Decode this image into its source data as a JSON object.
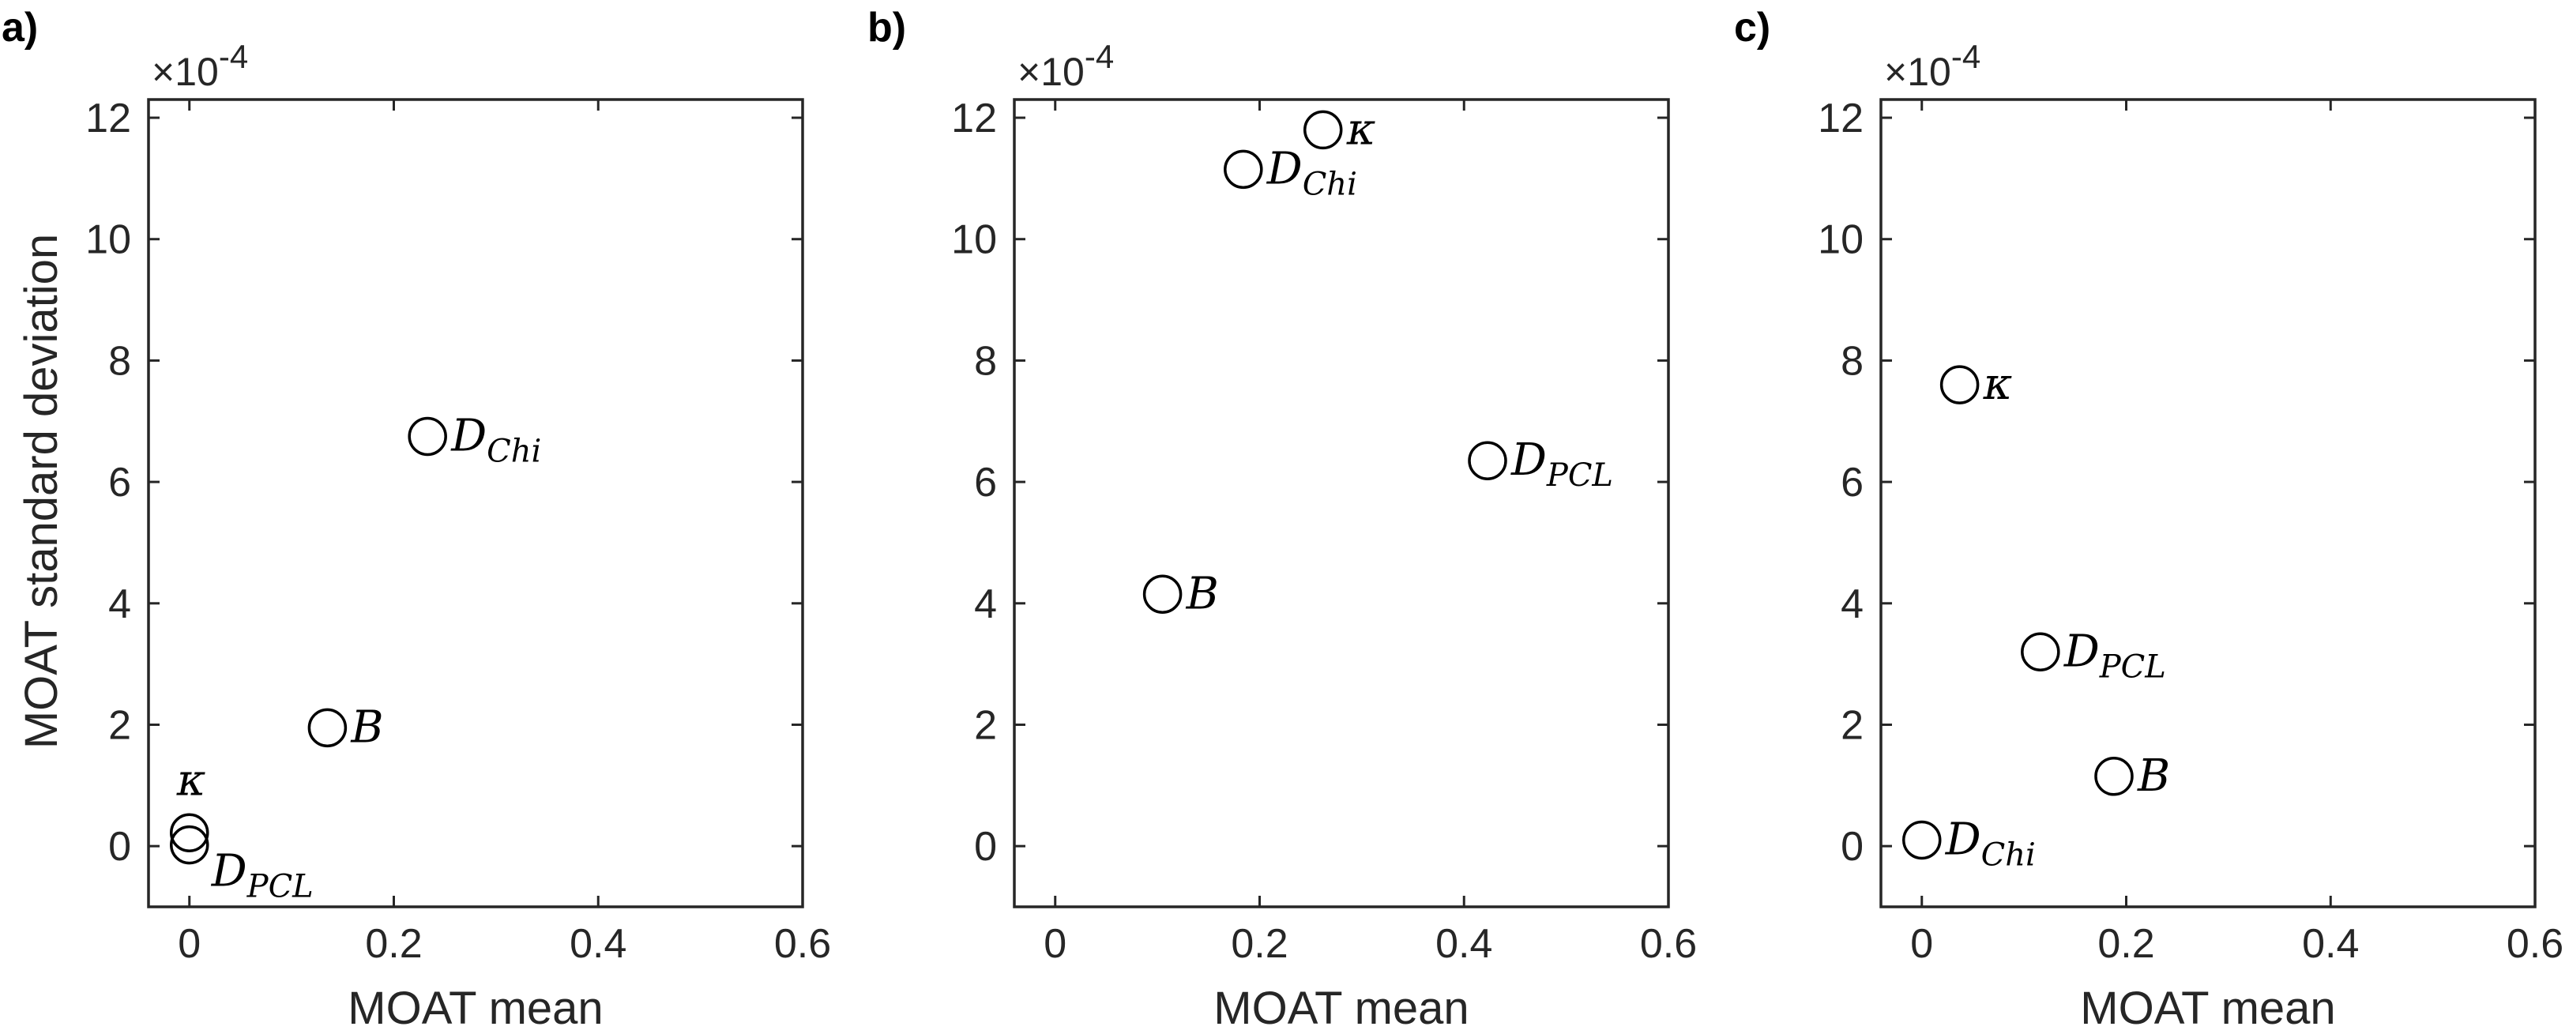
{
  "figure": {
    "ylabel": "MOAT standard deviation",
    "xlabel": "MOAT mean"
  },
  "chart_data": [
    {
      "type": "scatter",
      "panel_label": "a)",
      "xlabel": "MOAT mean",
      "ylabel": "MOAT standard deviation",
      "y_exponent_label": "×10",
      "y_exponent": "-4",
      "xlim": [
        -0.04,
        0.6
      ],
      "ylim": [
        -1,
        12.3
      ],
      "xticks": [
        "0",
        "0.2",
        "0.4",
        "0.6"
      ],
      "yticks": [
        "0",
        "2",
        "4",
        "6",
        "8",
        "10",
        "12"
      ],
      "points": [
        {
          "label": "κ",
          "sub": "",
          "x": 0.0,
          "y": 0.22,
          "label_pos": "above"
        },
        {
          "label": "D",
          "sub": "PCL",
          "x": 0.0,
          "y": 0.02,
          "label_pos": "below-right"
        },
        {
          "label": "B",
          "sub": "",
          "x": 0.135,
          "y": 1.95,
          "label_pos": "right"
        },
        {
          "label": "D",
          "sub": "Chi",
          "x": 0.233,
          "y": 6.75,
          "label_pos": "right"
        }
      ]
    },
    {
      "type": "scatter",
      "panel_label": "b)",
      "xlabel": "MOAT mean",
      "ylabel": "",
      "y_exponent_label": "×10",
      "y_exponent": "-4",
      "xlim": [
        -0.04,
        0.6
      ],
      "ylim": [
        -1,
        12.3
      ],
      "xticks": [
        "0",
        "0.2",
        "0.4",
        "0.6"
      ],
      "yticks": [
        "0",
        "2",
        "4",
        "6",
        "8",
        "10",
        "12"
      ],
      "points": [
        {
          "label": "κ",
          "sub": "",
          "x": 0.262,
          "y": 11.8,
          "label_pos": "right"
        },
        {
          "label": "D",
          "sub": "Chi",
          "x": 0.184,
          "y": 11.15,
          "label_pos": "right"
        },
        {
          "label": "D",
          "sub": "PCL",
          "x": 0.423,
          "y": 6.35,
          "label_pos": "right"
        },
        {
          "label": "B",
          "sub": "",
          "x": 0.105,
          "y": 4.15,
          "label_pos": "right"
        }
      ]
    },
    {
      "type": "scatter",
      "panel_label": "c)",
      "xlabel": "MOAT mean",
      "ylabel": "",
      "y_exponent_label": "×10",
      "y_exponent": "-4",
      "xlim": [
        -0.04,
        0.6
      ],
      "ylim": [
        -1,
        12.3
      ],
      "xticks": [
        "0",
        "0.2",
        "0.4",
        "0.6"
      ],
      "yticks": [
        "0",
        "2",
        "4",
        "6",
        "8",
        "10",
        "12"
      ],
      "points": [
        {
          "label": "κ",
          "sub": "",
          "x": 0.037,
          "y": 7.6,
          "label_pos": "right"
        },
        {
          "label": "D",
          "sub": "PCL",
          "x": 0.116,
          "y": 3.2,
          "label_pos": "right"
        },
        {
          "label": "B",
          "sub": "",
          "x": 0.188,
          "y": 1.15,
          "label_pos": "right"
        },
        {
          "label": "D",
          "sub": "Chi",
          "x": 0.0,
          "y": 0.1,
          "label_pos": "right"
        }
      ]
    }
  ]
}
